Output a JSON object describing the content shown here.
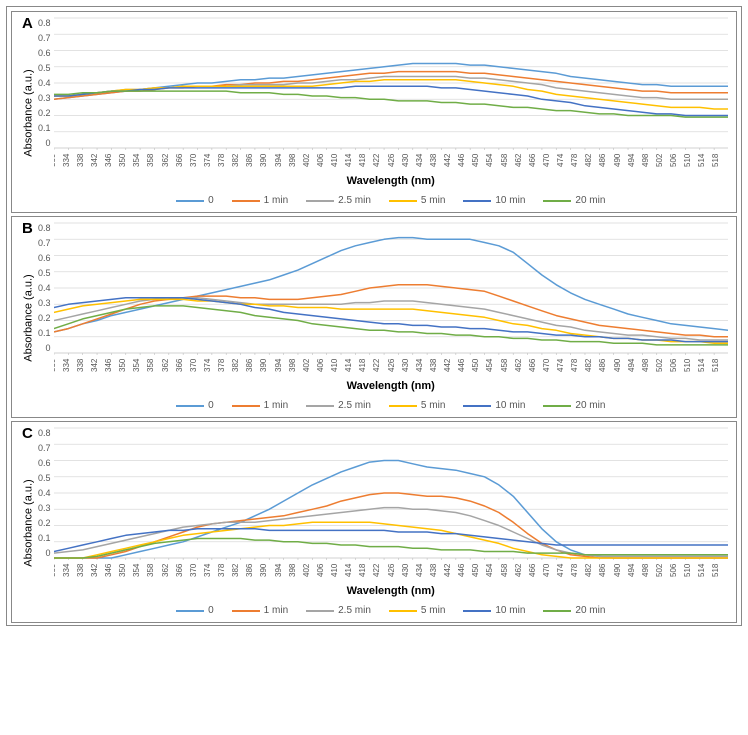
{
  "figure": {
    "x_axis_label": "Wavelength (nm)",
    "y_axis_label": "Absorbance (a.u.)",
    "x_min": 330,
    "x_max": 518,
    "x_step": 4,
    "y_min": 0,
    "y_max": 0.8,
    "y_step": 0.1,
    "background": "#ffffff",
    "grid_color": "#d9d9d9",
    "axis_color": "#bfbfbf",
    "tick_fontsize": 9,
    "label_fontsize": 11,
    "title_fontsize": 15,
    "series_order": [
      "0",
      "1 min",
      "2.5 min",
      "5 min",
      "10 min",
      "20 min"
    ],
    "series_colors": {
      "0": "#5b9bd5",
      "1 min": "#ed7d31",
      "2.5 min": "#a5a5a5",
      "5 min": "#ffc000",
      "10 min": "#4472c4",
      "20 min": "#70ad47"
    },
    "line_width": 1.5
  },
  "panels": [
    {
      "id": "A",
      "series": {
        "0": [
          0.3,
          0.31,
          0.32,
          0.33,
          0.34,
          0.35,
          0.36,
          0.37,
          0.38,
          0.39,
          0.4,
          0.4,
          0.41,
          0.42,
          0.42,
          0.43,
          0.43,
          0.44,
          0.45,
          0.46,
          0.47,
          0.48,
          0.49,
          0.5,
          0.51,
          0.52,
          0.52,
          0.52,
          0.52,
          0.51,
          0.51,
          0.5,
          0.49,
          0.48,
          0.47,
          0.46,
          0.44,
          0.43,
          0.42,
          0.41,
          0.4,
          0.39,
          0.39,
          0.38,
          0.38,
          0.38,
          0.38,
          0.38
        ],
        "1 min": [
          0.3,
          0.31,
          0.32,
          0.33,
          0.34,
          0.35,
          0.35,
          0.36,
          0.37,
          0.37,
          0.38,
          0.38,
          0.39,
          0.39,
          0.4,
          0.4,
          0.41,
          0.41,
          0.42,
          0.43,
          0.44,
          0.45,
          0.46,
          0.46,
          0.47,
          0.47,
          0.47,
          0.47,
          0.47,
          0.46,
          0.46,
          0.45,
          0.44,
          0.43,
          0.42,
          0.41,
          0.4,
          0.39,
          0.38,
          0.37,
          0.36,
          0.35,
          0.35,
          0.34,
          0.34,
          0.34,
          0.34,
          0.34
        ],
        "2.5 min": [
          0.32,
          0.32,
          0.33,
          0.34,
          0.35,
          0.36,
          0.36,
          0.37,
          0.37,
          0.38,
          0.38,
          0.38,
          0.38,
          0.39,
          0.39,
          0.39,
          0.39,
          0.4,
          0.4,
          0.41,
          0.42,
          0.42,
          0.43,
          0.44,
          0.44,
          0.44,
          0.44,
          0.44,
          0.44,
          0.43,
          0.43,
          0.42,
          0.41,
          0.4,
          0.39,
          0.37,
          0.36,
          0.35,
          0.34,
          0.33,
          0.32,
          0.31,
          0.31,
          0.3,
          0.3,
          0.3,
          0.3,
          0.3
        ],
        "5 min": [
          0.32,
          0.32,
          0.33,
          0.34,
          0.35,
          0.36,
          0.36,
          0.37,
          0.37,
          0.38,
          0.38,
          0.38,
          0.38,
          0.38,
          0.38,
          0.38,
          0.38,
          0.38,
          0.38,
          0.39,
          0.4,
          0.41,
          0.41,
          0.42,
          0.42,
          0.42,
          0.42,
          0.42,
          0.42,
          0.41,
          0.4,
          0.39,
          0.38,
          0.36,
          0.35,
          0.33,
          0.32,
          0.31,
          0.3,
          0.29,
          0.28,
          0.27,
          0.26,
          0.25,
          0.25,
          0.25,
          0.24,
          0.24
        ],
        "10 min": [
          0.32,
          0.32,
          0.33,
          0.34,
          0.35,
          0.35,
          0.36,
          0.36,
          0.37,
          0.37,
          0.37,
          0.37,
          0.37,
          0.37,
          0.37,
          0.37,
          0.37,
          0.37,
          0.37,
          0.37,
          0.37,
          0.38,
          0.38,
          0.38,
          0.38,
          0.38,
          0.38,
          0.37,
          0.37,
          0.36,
          0.35,
          0.34,
          0.33,
          0.32,
          0.3,
          0.29,
          0.28,
          0.26,
          0.25,
          0.24,
          0.23,
          0.22,
          0.21,
          0.21,
          0.2,
          0.2,
          0.2,
          0.2
        ],
        "20 min": [
          0.33,
          0.33,
          0.34,
          0.34,
          0.35,
          0.35,
          0.35,
          0.35,
          0.35,
          0.35,
          0.35,
          0.35,
          0.35,
          0.34,
          0.34,
          0.34,
          0.33,
          0.33,
          0.32,
          0.32,
          0.31,
          0.31,
          0.3,
          0.3,
          0.29,
          0.29,
          0.29,
          0.28,
          0.28,
          0.27,
          0.27,
          0.26,
          0.25,
          0.25,
          0.24,
          0.23,
          0.23,
          0.22,
          0.21,
          0.21,
          0.2,
          0.2,
          0.2,
          0.2,
          0.19,
          0.19,
          0.19,
          0.19
        ]
      }
    },
    {
      "id": "B",
      "series": {
        "0": [
          0.13,
          0.15,
          0.18,
          0.2,
          0.23,
          0.25,
          0.27,
          0.29,
          0.31,
          0.33,
          0.35,
          0.37,
          0.39,
          0.41,
          0.43,
          0.45,
          0.48,
          0.51,
          0.55,
          0.59,
          0.63,
          0.66,
          0.68,
          0.7,
          0.71,
          0.71,
          0.7,
          0.7,
          0.7,
          0.7,
          0.68,
          0.66,
          0.62,
          0.55,
          0.48,
          0.42,
          0.37,
          0.33,
          0.3,
          0.27,
          0.24,
          0.22,
          0.2,
          0.18,
          0.17,
          0.16,
          0.15,
          0.14
        ],
        "1 min": [
          0.13,
          0.15,
          0.18,
          0.21,
          0.24,
          0.27,
          0.3,
          0.32,
          0.33,
          0.34,
          0.35,
          0.35,
          0.35,
          0.34,
          0.34,
          0.33,
          0.33,
          0.33,
          0.34,
          0.35,
          0.36,
          0.38,
          0.4,
          0.41,
          0.42,
          0.42,
          0.42,
          0.41,
          0.4,
          0.39,
          0.38,
          0.35,
          0.32,
          0.29,
          0.26,
          0.23,
          0.21,
          0.19,
          0.17,
          0.16,
          0.15,
          0.14,
          0.13,
          0.12,
          0.11,
          0.11,
          0.1,
          0.1
        ],
        "2.5 min": [
          0.2,
          0.22,
          0.24,
          0.26,
          0.28,
          0.3,
          0.32,
          0.33,
          0.34,
          0.34,
          0.34,
          0.33,
          0.32,
          0.31,
          0.3,
          0.3,
          0.3,
          0.3,
          0.3,
          0.3,
          0.3,
          0.31,
          0.31,
          0.32,
          0.32,
          0.32,
          0.31,
          0.3,
          0.29,
          0.28,
          0.27,
          0.25,
          0.23,
          0.21,
          0.19,
          0.17,
          0.16,
          0.14,
          0.13,
          0.12,
          0.11,
          0.11,
          0.1,
          0.09,
          0.09,
          0.08,
          0.08,
          0.08
        ],
        "5 min": [
          0.25,
          0.27,
          0.29,
          0.3,
          0.31,
          0.32,
          0.33,
          0.33,
          0.33,
          0.33,
          0.32,
          0.32,
          0.31,
          0.3,
          0.3,
          0.29,
          0.29,
          0.28,
          0.28,
          0.28,
          0.27,
          0.27,
          0.27,
          0.27,
          0.27,
          0.27,
          0.26,
          0.25,
          0.24,
          0.23,
          0.22,
          0.2,
          0.18,
          0.17,
          0.15,
          0.14,
          0.12,
          0.11,
          0.1,
          0.09,
          0.09,
          0.08,
          0.08,
          0.07,
          0.07,
          0.07,
          0.06,
          0.06
        ],
        "10 min": [
          0.28,
          0.3,
          0.31,
          0.32,
          0.33,
          0.34,
          0.34,
          0.34,
          0.34,
          0.34,
          0.33,
          0.32,
          0.31,
          0.3,
          0.28,
          0.27,
          0.25,
          0.24,
          0.23,
          0.22,
          0.21,
          0.2,
          0.19,
          0.18,
          0.18,
          0.17,
          0.17,
          0.16,
          0.16,
          0.15,
          0.15,
          0.14,
          0.13,
          0.13,
          0.12,
          0.11,
          0.11,
          0.1,
          0.1,
          0.09,
          0.09,
          0.08,
          0.08,
          0.08,
          0.07,
          0.07,
          0.07,
          0.07
        ],
        "20 min": [
          0.15,
          0.18,
          0.21,
          0.23,
          0.25,
          0.27,
          0.28,
          0.29,
          0.29,
          0.29,
          0.28,
          0.27,
          0.26,
          0.25,
          0.23,
          0.22,
          0.21,
          0.2,
          0.18,
          0.17,
          0.16,
          0.15,
          0.14,
          0.14,
          0.13,
          0.13,
          0.12,
          0.12,
          0.11,
          0.11,
          0.1,
          0.1,
          0.09,
          0.09,
          0.08,
          0.08,
          0.07,
          0.07,
          0.07,
          0.06,
          0.06,
          0.06,
          0.05,
          0.05,
          0.05,
          0.05,
          0.05,
          0.05
        ]
      }
    },
    {
      "id": "C",
      "series": {
        "0": [
          0.0,
          0.0,
          0.0,
          0.0,
          0.0,
          0.02,
          0.04,
          0.06,
          0.08,
          0.1,
          0.13,
          0.16,
          0.19,
          0.22,
          0.26,
          0.3,
          0.35,
          0.4,
          0.45,
          0.49,
          0.53,
          0.56,
          0.59,
          0.6,
          0.6,
          0.58,
          0.56,
          0.55,
          0.54,
          0.52,
          0.5,
          0.45,
          0.38,
          0.28,
          0.18,
          0.1,
          0.05,
          0.02,
          0.01,
          0.0,
          0.0,
          0.0,
          0.0,
          0.0,
          0.0,
          0.0,
          0.0,
          0.0
        ],
        "1 min": [
          0.0,
          0.0,
          0.0,
          0.0,
          0.02,
          0.04,
          0.07,
          0.1,
          0.13,
          0.16,
          0.19,
          0.21,
          0.22,
          0.23,
          0.24,
          0.25,
          0.26,
          0.28,
          0.3,
          0.32,
          0.35,
          0.37,
          0.39,
          0.4,
          0.4,
          0.39,
          0.38,
          0.38,
          0.37,
          0.35,
          0.32,
          0.28,
          0.22,
          0.15,
          0.09,
          0.05,
          0.02,
          0.01,
          0.0,
          0.0,
          0.0,
          0.0,
          0.0,
          0.0,
          0.0,
          0.0,
          0.0,
          0.0
        ],
        "2.5 min": [
          0.03,
          0.04,
          0.05,
          0.07,
          0.09,
          0.11,
          0.13,
          0.15,
          0.17,
          0.19,
          0.2,
          0.21,
          0.22,
          0.22,
          0.22,
          0.23,
          0.24,
          0.25,
          0.26,
          0.27,
          0.28,
          0.29,
          0.3,
          0.31,
          0.31,
          0.3,
          0.3,
          0.29,
          0.28,
          0.26,
          0.23,
          0.2,
          0.16,
          0.12,
          0.08,
          0.05,
          0.03,
          0.02,
          0.01,
          0.01,
          0.01,
          0.01,
          0.01,
          0.01,
          0.01,
          0.01,
          0.01,
          0.01
        ],
        "5 min": [
          0.0,
          0.0,
          0.0,
          0.02,
          0.04,
          0.06,
          0.08,
          0.1,
          0.12,
          0.14,
          0.15,
          0.16,
          0.17,
          0.18,
          0.19,
          0.2,
          0.2,
          0.21,
          0.22,
          0.22,
          0.22,
          0.22,
          0.22,
          0.21,
          0.2,
          0.19,
          0.18,
          0.17,
          0.15,
          0.13,
          0.11,
          0.09,
          0.06,
          0.04,
          0.02,
          0.01,
          0.0,
          0.0,
          0.0,
          0.0,
          0.0,
          0.0,
          0.0,
          0.0,
          0.0,
          0.0,
          0.0,
          0.0
        ],
        "10 min": [
          0.04,
          0.06,
          0.08,
          0.1,
          0.12,
          0.14,
          0.15,
          0.16,
          0.17,
          0.17,
          0.18,
          0.18,
          0.18,
          0.18,
          0.18,
          0.17,
          0.17,
          0.17,
          0.17,
          0.17,
          0.17,
          0.17,
          0.17,
          0.17,
          0.16,
          0.16,
          0.16,
          0.15,
          0.15,
          0.14,
          0.13,
          0.12,
          0.11,
          0.1,
          0.09,
          0.08,
          0.08,
          0.08,
          0.08,
          0.08,
          0.08,
          0.08,
          0.08,
          0.08,
          0.08,
          0.08,
          0.08,
          0.08
        ],
        "20 min": [
          0.0,
          0.0,
          0.0,
          0.01,
          0.03,
          0.05,
          0.07,
          0.09,
          0.1,
          0.11,
          0.12,
          0.12,
          0.12,
          0.12,
          0.11,
          0.11,
          0.1,
          0.1,
          0.09,
          0.09,
          0.08,
          0.08,
          0.07,
          0.07,
          0.07,
          0.06,
          0.06,
          0.05,
          0.05,
          0.05,
          0.04,
          0.04,
          0.04,
          0.03,
          0.03,
          0.03,
          0.03,
          0.02,
          0.02,
          0.02,
          0.02,
          0.02,
          0.02,
          0.02,
          0.02,
          0.02,
          0.02,
          0.02
        ]
      }
    }
  ]
}
